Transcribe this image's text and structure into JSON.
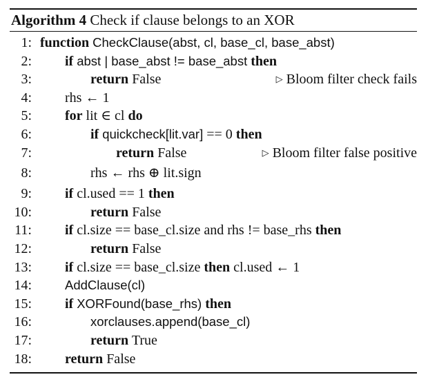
{
  "algorithm": {
    "caption_label": "Algorithm 4",
    "caption_text": "Check if clause belongs to an XOR",
    "comment_marker": "▷",
    "lines": [
      {
        "num": "1:",
        "kw1": "function",
        "sf1": "CheckClause(abst, cl, base_cl, base_abst)"
      },
      {
        "num": "2:",
        "kw1": "if",
        "sf1": "abst | base_abst != base_abst",
        "kw2": "then"
      },
      {
        "num": "3:",
        "kw1": "return",
        "t1": "False",
        "comment": "Bloom filter check fails"
      },
      {
        "num": "4:",
        "t1": "rhs ← 1"
      },
      {
        "num": "5:",
        "kw1": "for",
        "t1": "lit ∈ cl",
        "kw2": "do"
      },
      {
        "num": "6:",
        "kw1": "if",
        "sf1": "quickcheck[lit.var]",
        "t1": "== 0",
        "kw2": "then"
      },
      {
        "num": "7:",
        "kw1": "return",
        "t1": "False",
        "comment": "Bloom filter false positive"
      },
      {
        "num": "8:",
        "t1": "rhs ← rhs ⊕ lit.sign"
      },
      {
        "num": "9:",
        "kw1": "if",
        "t1": "cl.used == 1",
        "kw2": "then"
      },
      {
        "num": "10:",
        "kw1": "return",
        "t1": "False"
      },
      {
        "num": "11:",
        "kw1": "if",
        "t1": "cl.size == base_cl.size and rhs != base_rhs",
        "kw2": "then"
      },
      {
        "num": "12:",
        "kw1": "return",
        "t1": "False"
      },
      {
        "num": "13:",
        "kw1": "if",
        "t1": "cl.size == base_cl.size",
        "kw2": "then",
        "t2": "cl.used ← 1"
      },
      {
        "num": "14:",
        "sf1": "AddClause(cl)"
      },
      {
        "num": "15:",
        "kw1": "if",
        "sf1": "XORFound(base_rhs)",
        "kw2": "then"
      },
      {
        "num": "16:",
        "t1": "xorclauses.append(base_cl)"
      },
      {
        "num": "17:",
        "kw1": "return",
        "t1": "True"
      },
      {
        "num": "18:",
        "kw1": "return",
        "t1": "False"
      }
    ]
  }
}
